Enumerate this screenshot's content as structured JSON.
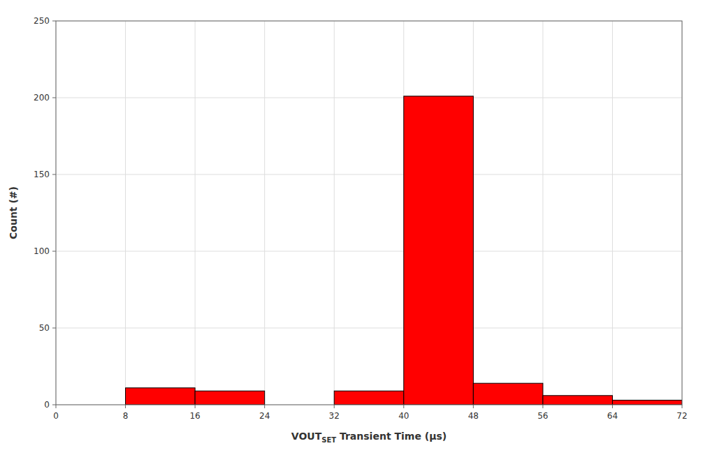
{
  "chart_data": {
    "type": "histogram",
    "bins": [
      0,
      8,
      16,
      24,
      32,
      40,
      48,
      56,
      64,
      72
    ],
    "counts": [
      0,
      11,
      9,
      0,
      9,
      201,
      14,
      6,
      3
    ],
    "color": "#FF0000",
    "xlim": [
      0,
      72
    ],
    "ylim": [
      0,
      250
    ],
    "xticks": [
      0,
      8,
      16,
      24,
      32,
      40,
      48,
      56,
      64,
      72
    ],
    "yticks": [
      0,
      50,
      100,
      150,
      200,
      250
    ],
    "grid": true,
    "ylabel": "Count (#)",
    "xlabel": [
      {
        "text": "VOUT"
      },
      {
        "text": "SET",
        "sub": true
      },
      {
        "text": " Transient Time (µs)"
      }
    ]
  }
}
